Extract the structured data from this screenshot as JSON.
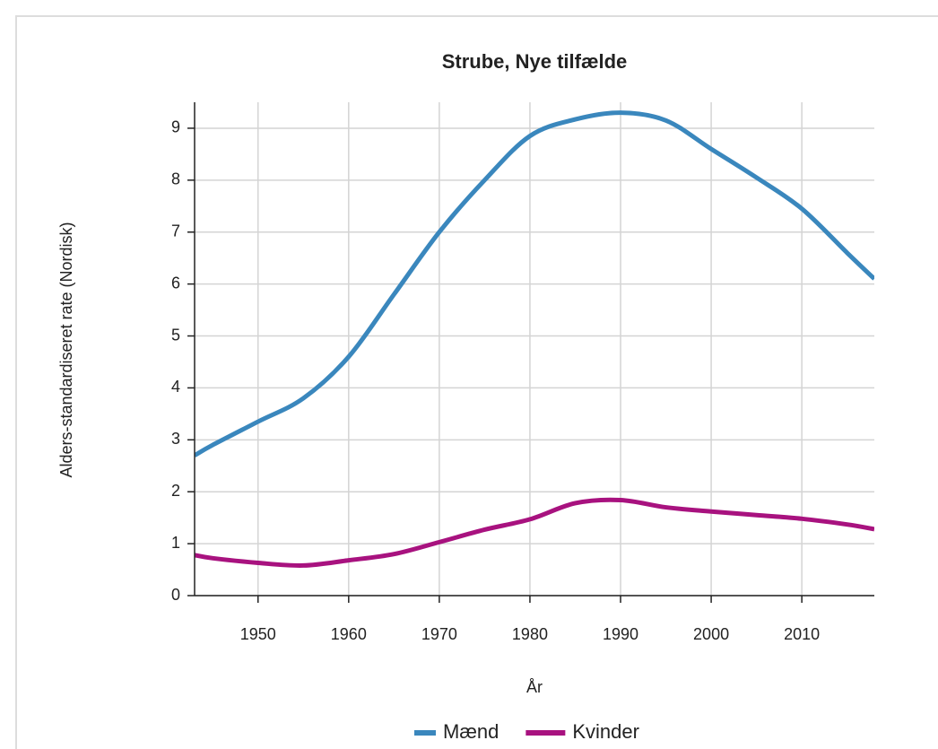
{
  "chart_data": {
    "type": "line",
    "title": "Strube, Nye tilfælde",
    "x_label": "År",
    "y_label": "Alders-standardiseret rate (Nordisk)",
    "x": [
      1943,
      1945,
      1950,
      1955,
      1960,
      1965,
      1970,
      1975,
      1980,
      1985,
      1990,
      1995,
      2000,
      2005,
      2010,
      2015,
      2018
    ],
    "series": [
      {
        "name": "Mænd",
        "color": "#3a87bd",
        "values": [
          2.7,
          2.9,
          3.35,
          3.8,
          4.6,
          5.8,
          7.0,
          8.0,
          8.85,
          9.17,
          9.3,
          9.15,
          8.6,
          8.05,
          7.45,
          6.6,
          6.1
        ]
      },
      {
        "name": "Kvinder",
        "color": "#a8127f",
        "values": [
          0.78,
          0.72,
          0.63,
          0.58,
          0.68,
          0.8,
          1.03,
          1.27,
          1.47,
          1.78,
          1.84,
          1.7,
          1.62,
          1.55,
          1.48,
          1.37,
          1.28
        ]
      }
    ],
    "xlim": [
      1943,
      2018
    ],
    "xticks": [
      1950,
      1960,
      1970,
      1980,
      1990,
      2000,
      2010
    ],
    "ylim": [
      0,
      9.5
    ],
    "yticks": [
      0,
      1,
      2,
      3,
      4,
      5,
      6,
      7,
      8,
      9
    ],
    "grid": true,
    "legend": "bottom"
  }
}
